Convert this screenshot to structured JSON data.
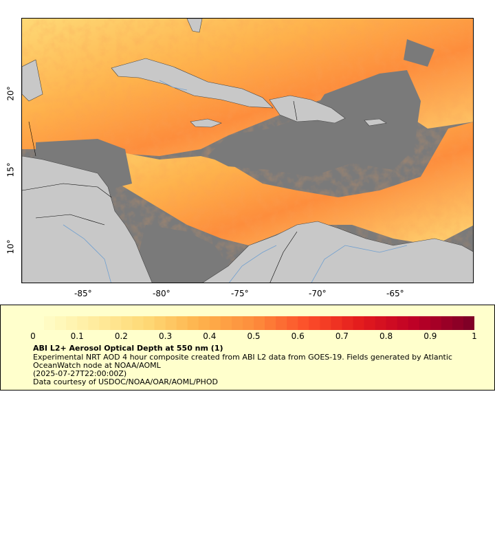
{
  "map": {
    "lon_labels": [
      "-85°",
      "-80°",
      "-75°",
      "-70°",
      "-65°"
    ],
    "lat_labels": [
      "20°",
      "15°",
      "10°"
    ],
    "colors": {
      "ocean_nodata": "#7a7a7a",
      "land": "#c8c8c8",
      "rivers": "#6f9fd0",
      "borders": "#000000"
    }
  },
  "legend": {
    "colorbar_ticks": [
      "0",
      "0.1",
      "0.2",
      "0.3",
      "0.4",
      "0.5",
      "0.6",
      "0.7",
      "0.8",
      "0.9",
      "1"
    ],
    "colorbar_range": [
      0,
      1
    ],
    "colormap": [
      "#ffffcc",
      "#ffeda0",
      "#fed976",
      "#feb24c",
      "#fd8d3c",
      "#fc4e2a",
      "#e31a1c",
      "#bd0026",
      "#800026"
    ],
    "title": "ABI L2+ Aerosol Optical Depth at 550 nm (1)",
    "description": "Experimental NRT AOD 4 hour composite created from ABI L2 data from GOES-19. Fields generated by Atlantic OceanWatch node at NOAA/AOML",
    "timestamp": "(2025-07-27T22:00:00Z)",
    "credit": "Data courtesy of USDOC/NOAA/OAR/AOML/PHOD"
  }
}
